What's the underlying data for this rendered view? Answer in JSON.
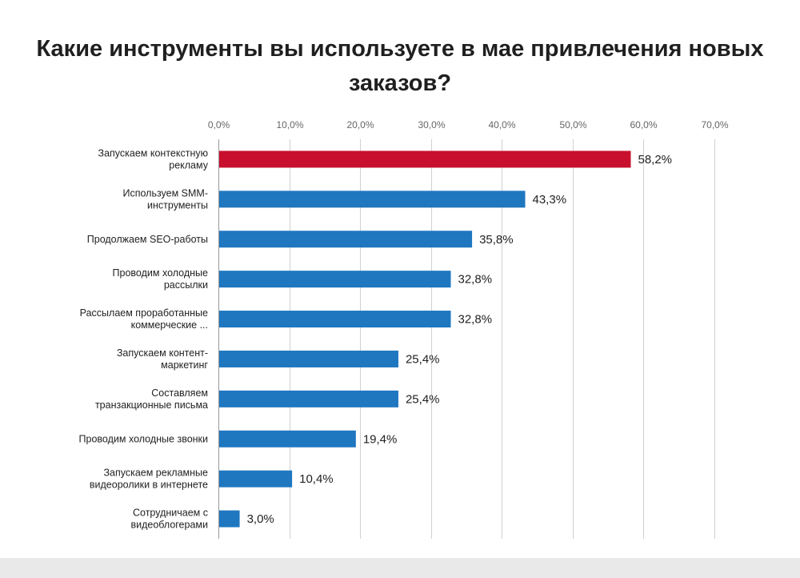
{
  "chart_data": {
    "type": "bar",
    "orientation": "horizontal",
    "title": "Какие инструменты вы используете в мае привлечения новых заказов?",
    "xlim": [
      0,
      70
    ],
    "x_ticks": [
      0,
      10,
      20,
      30,
      40,
      50,
      60,
      70
    ],
    "x_tick_labels": [
      "0,0%",
      "10,0%",
      "20,0%",
      "30,0%",
      "40,0%",
      "50,0%",
      "60,0%",
      "70,0%"
    ],
    "x_axis_position": "top",
    "grid": true,
    "legend": "none",
    "categories": [
      [
        "Запускаем контекстную",
        "рекламу"
      ],
      [
        "Используем SMM-",
        "инструменты"
      ],
      [
        "Продолжаем SEO-работы"
      ],
      [
        "Проводим холодные",
        "рассылки"
      ],
      [
        "Рассылаем проработанные",
        "коммерческие ..."
      ],
      [
        "Запускаем контент-",
        "маркетинг"
      ],
      [
        "Составляем",
        "транзакционные письма"
      ],
      [
        "Проводим холодные звонки"
      ],
      [
        "Запускаем рекламные",
        "видеоролики в интернете"
      ],
      [
        "Сотрудничаем с",
        "видеоблогерами"
      ]
    ],
    "values": [
      58.2,
      43.3,
      35.8,
      32.8,
      32.8,
      25.4,
      25.4,
      19.4,
      10.4,
      3.0
    ],
    "value_labels": [
      "58,2%",
      "43,3%",
      "35,8%",
      "32,8%",
      "32,8%",
      "25,4%",
      "25,4%",
      "19,4%",
      "10,4%",
      "3,0%"
    ],
    "colors": {
      "highlight": "#c8102e",
      "bar": "#1f77c0",
      "grid": "#d0d0d0"
    },
    "highlight_index": 0
  }
}
